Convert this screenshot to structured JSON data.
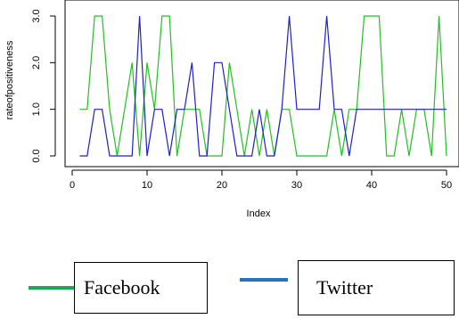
{
  "chart_data": {
    "type": "line",
    "title": "",
    "xlabel": "Index",
    "ylabel": "rateofpositiveness",
    "xlim": [
      0,
      50
    ],
    "ylim": [
      0,
      3
    ],
    "xticks": [
      "0",
      "10",
      "20",
      "30",
      "40",
      "50"
    ],
    "yticks": [
      "0.0",
      "1.0",
      "2.0",
      "3.0"
    ],
    "grid": false,
    "series": [
      {
        "name": "Facebook",
        "color": "#22c022",
        "x": [
          1,
          2,
          3,
          4,
          5,
          6,
          7,
          8,
          9,
          10,
          11,
          12,
          13,
          14,
          15,
          16,
          17,
          18,
          19,
          20,
          21,
          22,
          23,
          24,
          25,
          26,
          27,
          28,
          29,
          30,
          31,
          32,
          33,
          34,
          35,
          36,
          37,
          38,
          39,
          40,
          41,
          42,
          43,
          44,
          45,
          46,
          47,
          48,
          49,
          50
        ],
        "values": [
          1,
          1,
          3,
          3,
          1,
          0,
          1,
          2,
          0,
          2,
          1,
          3,
          3,
          0,
          1,
          1,
          1,
          0,
          0,
          0,
          2,
          1,
          0,
          1,
          0,
          1,
          0,
          1,
          1,
          0,
          0,
          0,
          0,
          0,
          1,
          0,
          1,
          1,
          3,
          3,
          3,
          0,
          0,
          1,
          0,
          1,
          1,
          0,
          3,
          0
        ]
      },
      {
        "name": "Twitter",
        "color": "#1f1fcc",
        "x": [
          1,
          2,
          3,
          4,
          5,
          6,
          7,
          8,
          9,
          10,
          11,
          12,
          13,
          14,
          15,
          16,
          17,
          18,
          19,
          20,
          21,
          22,
          23,
          24,
          25,
          26,
          27,
          28,
          29,
          30,
          31,
          32,
          33,
          34,
          35,
          36,
          37,
          38,
          39,
          40,
          41,
          42,
          43,
          44,
          45,
          46,
          47,
          48,
          49,
          50
        ],
        "values": [
          0,
          0,
          1,
          1,
          0,
          0,
          0,
          0,
          3,
          0,
          1,
          1,
          0,
          1,
          1,
          2,
          0,
          0,
          2,
          2,
          1,
          0,
          0,
          0,
          1,
          0,
          0,
          1,
          3,
          1,
          1,
          1,
          1,
          3,
          1,
          1,
          0,
          1,
          1,
          1,
          1,
          1,
          1,
          1,
          1,
          1,
          1,
          1,
          1,
          1
        ]
      }
    ]
  },
  "legend": {
    "facebook_label": "Facebook",
    "twitter_label": "Twitter",
    "facebook_color": "#1fa84f",
    "twitter_color": "#2a72b8"
  }
}
